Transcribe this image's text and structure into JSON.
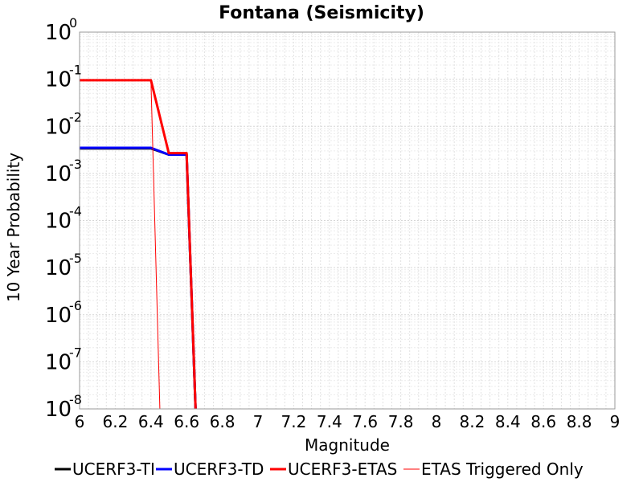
{
  "chart_data": {
    "type": "line",
    "title": "Fontana (Seismicity)",
    "xlabel": "Magnitude",
    "ylabel": "10 Year Probability",
    "xlim": [
      6,
      9
    ],
    "ylim": [
      1e-08,
      1
    ],
    "yscale": "log",
    "grid": true,
    "legend_position": "bottom",
    "x_ticks": [
      "6",
      "6.2",
      "6.4",
      "6.6",
      "6.8",
      "7",
      "7.2",
      "7.4",
      "7.6",
      "7.8",
      "8",
      "8.2",
      "8.4",
      "8.6",
      "8.8",
      "9"
    ],
    "y_ticks": [
      {
        "base": "10",
        "exp": "0"
      },
      {
        "base": "10",
        "exp": "-1"
      },
      {
        "base": "10",
        "exp": "-2"
      },
      {
        "base": "10",
        "exp": "-3"
      },
      {
        "base": "10",
        "exp": "-4"
      },
      {
        "base": "10",
        "exp": "-5"
      },
      {
        "base": "10",
        "exp": "-6"
      },
      {
        "base": "10",
        "exp": "-7"
      },
      {
        "base": "10",
        "exp": "-8"
      }
    ],
    "series": [
      {
        "name": "UCERF3-TI",
        "color": "#000000",
        "width": 3,
        "x": [
          6.0,
          6.1,
          6.2,
          6.3,
          6.4,
          6.5,
          6.6,
          6.65
        ],
        "y": [
          0.0034,
          0.0034,
          0.0034,
          0.0034,
          0.0034,
          0.0025,
          0.0025,
          1e-08
        ]
      },
      {
        "name": "UCERF3-TD",
        "color": "#0000ff",
        "width": 3,
        "x": [
          6.0,
          6.1,
          6.2,
          6.3,
          6.4,
          6.5,
          6.6,
          6.65
        ],
        "y": [
          0.0035,
          0.0035,
          0.0035,
          0.0035,
          0.0035,
          0.0025,
          0.0025,
          1e-08
        ]
      },
      {
        "name": "UCERF3-ETAS",
        "color": "#ff0000",
        "width": 3,
        "x": [
          6.0,
          6.1,
          6.2,
          6.3,
          6.4,
          6.5,
          6.6,
          6.65
        ],
        "y": [
          0.095,
          0.095,
          0.095,
          0.095,
          0.095,
          0.0027,
          0.0027,
          1e-08
        ]
      },
      {
        "name": "ETAS Triggered Only",
        "color": "#ff0000",
        "width": 1,
        "x": [
          6.0,
          6.1,
          6.2,
          6.3,
          6.4,
          6.45
        ],
        "y": [
          0.095,
          0.095,
          0.095,
          0.095,
          0.095,
          1e-08
        ]
      }
    ]
  }
}
